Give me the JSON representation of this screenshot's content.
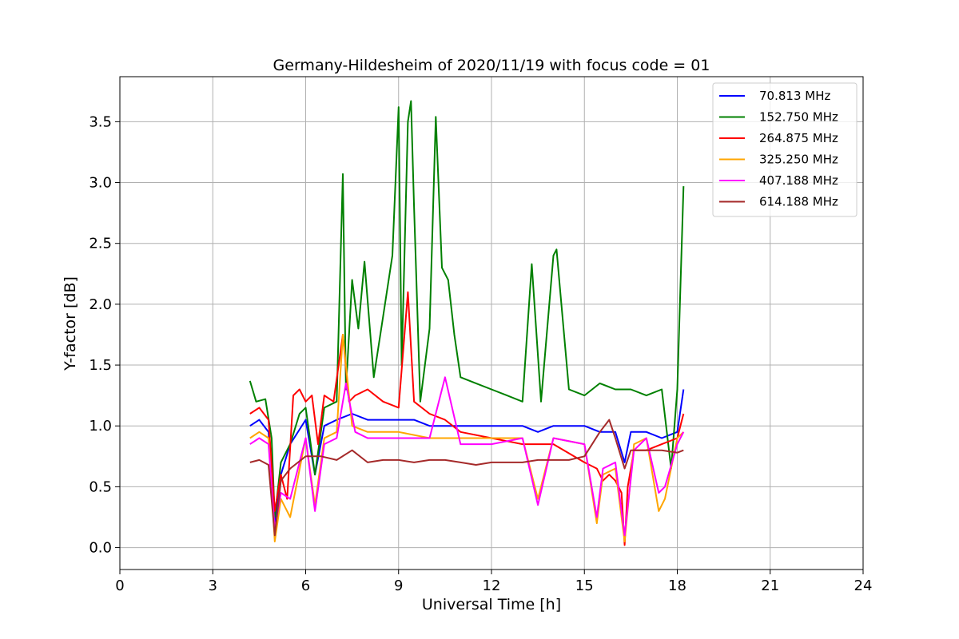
{
  "chart_data": {
    "type": "line",
    "title": "Germany-Hildesheim of 2020/11/19 with focus code = 01",
    "xlabel": "Universal Time [h]",
    "ylabel": "Y-factor [dB]",
    "xlim": [
      0,
      24
    ],
    "ylim": [
      -0.18,
      3.87
    ],
    "xticks": [
      0,
      3,
      6,
      9,
      12,
      15,
      18,
      21,
      24
    ],
    "xtick_labels": [
      "0",
      "3",
      "6",
      "9",
      "12",
      "15",
      "18",
      "21",
      "24"
    ],
    "yticks": [
      0.0,
      0.5,
      1.0,
      1.5,
      2.0,
      2.5,
      3.0,
      3.5
    ],
    "ytick_labels": [
      "0.0",
      "0.5",
      "1.0",
      "1.5",
      "2.0",
      "2.5",
      "3.0",
      "3.5"
    ],
    "grid": true,
    "legend_position": "top-right",
    "series": [
      {
        "name": " 70.813 MHz",
        "color": "#0000ff",
        "x": [
          4.2,
          4.5,
          4.8,
          5.0,
          5.2,
          5.5,
          6.0,
          6.3,
          6.6,
          7.0,
          7.5,
          8.0,
          8.5,
          9.0,
          9.5,
          10.0,
          10.5,
          11.0,
          11.5,
          12.0,
          12.5,
          13.0,
          13.5,
          14.0,
          14.5,
          15.0,
          15.5,
          16.0,
          16.3,
          16.5,
          17.0,
          17.5,
          18.0,
          18.2
        ],
        "y": [
          1.0,
          1.05,
          0.95,
          0.2,
          0.6,
          0.85,
          1.05,
          0.6,
          1.0,
          1.05,
          1.1,
          1.05,
          1.05,
          1.05,
          1.05,
          1.0,
          1.0,
          1.0,
          1.0,
          1.0,
          1.0,
          1.0,
          0.95,
          1.0,
          1.0,
          1.0,
          0.95,
          0.95,
          0.7,
          0.95,
          0.95,
          0.9,
          0.95,
          1.3
        ]
      },
      {
        "name": "152.750 MHz",
        "color": "#008000",
        "x": [
          4.2,
          4.4,
          4.7,
          4.9,
          5.0,
          5.2,
          5.5,
          5.8,
          6.0,
          6.3,
          6.6,
          7.0,
          7.2,
          7.3,
          7.5,
          7.7,
          7.9,
          8.2,
          8.5,
          8.8,
          9.0,
          9.1,
          9.3,
          9.4,
          9.5,
          9.7,
          10.0,
          10.2,
          10.4,
          10.6,
          10.8,
          11.0,
          11.5,
          12.0,
          12.5,
          13.0,
          13.3,
          13.6,
          14.0,
          14.1,
          14.5,
          15.0,
          15.5,
          16.0,
          16.5,
          17.0,
          17.5,
          17.8,
          18.0,
          18.2
        ],
        "y": [
          1.37,
          1.2,
          1.22,
          0.9,
          0.25,
          0.7,
          0.85,
          1.1,
          1.15,
          0.6,
          1.15,
          1.2,
          3.07,
          1.3,
          2.2,
          1.8,
          2.35,
          1.4,
          1.9,
          2.4,
          3.62,
          1.5,
          3.5,
          3.67,
          2.8,
          1.2,
          1.8,
          3.54,
          2.3,
          2.2,
          1.75,
          1.4,
          1.35,
          1.3,
          1.25,
          1.2,
          2.33,
          1.2,
          2.4,
          2.45,
          1.3,
          1.25,
          1.35,
          1.3,
          1.3,
          1.25,
          1.3,
          0.65,
          1.3,
          2.97
        ]
      },
      {
        "name": "264.875 MHz",
        "color": "#ff0000",
        "x": [
          4.2,
          4.5,
          4.8,
          4.95,
          5.0,
          5.2,
          5.4,
          5.6,
          5.8,
          6.0,
          6.2,
          6.4,
          6.6,
          6.9,
          7.2,
          7.4,
          7.6,
          8.0,
          8.5,
          9.0,
          9.3,
          9.5,
          10.0,
          10.5,
          11.0,
          12.0,
          13.0,
          14.0,
          15.0,
          15.4,
          15.6,
          15.8,
          16.0,
          16.2,
          16.3,
          16.4,
          16.6,
          17.0,
          17.5,
          18.0,
          18.2
        ],
        "y": [
          1.1,
          1.15,
          1.05,
          0.5,
          0.3,
          0.6,
          0.4,
          1.25,
          1.3,
          1.2,
          1.25,
          0.85,
          1.25,
          1.2,
          1.75,
          1.2,
          1.25,
          1.3,
          1.2,
          1.15,
          2.1,
          1.2,
          1.1,
          1.05,
          0.95,
          0.9,
          0.85,
          0.85,
          0.7,
          0.65,
          0.55,
          0.6,
          0.55,
          0.45,
          0.02,
          0.5,
          0.8,
          0.8,
          0.85,
          0.9,
          1.1
        ]
      },
      {
        "name": "325.250 MHz",
        "color": "#ffa500",
        "x": [
          4.2,
          4.5,
          4.8,
          5.0,
          5.2,
          5.5,
          6.0,
          6.3,
          6.6,
          7.0,
          7.2,
          7.5,
          8.0,
          9.0,
          10.0,
          11.0,
          12.0,
          13.0,
          13.5,
          14.0,
          15.0,
          15.4,
          15.6,
          16.0,
          16.3,
          16.6,
          17.0,
          17.4,
          17.6,
          18.0,
          18.2
        ],
        "y": [
          0.9,
          0.95,
          0.9,
          0.05,
          0.4,
          0.25,
          0.9,
          0.35,
          0.9,
          0.95,
          1.75,
          1.0,
          0.95,
          0.95,
          0.9,
          0.9,
          0.9,
          0.9,
          0.4,
          0.9,
          0.85,
          0.2,
          0.6,
          0.65,
          0.05,
          0.85,
          0.9,
          0.3,
          0.4,
          0.9,
          0.95
        ]
      },
      {
        "name": "407.188 MHz",
        "color": "#ff00ff",
        "x": [
          4.2,
          4.5,
          4.8,
          5.0,
          5.2,
          5.5,
          6.0,
          6.3,
          6.6,
          7.0,
          7.3,
          7.6,
          8.0,
          9.0,
          10.0,
          10.5,
          11.0,
          12.0,
          13.0,
          13.5,
          14.0,
          15.0,
          15.4,
          15.6,
          16.0,
          16.3,
          16.6,
          17.0,
          17.4,
          17.6,
          18.0,
          18.2
        ],
        "y": [
          0.85,
          0.9,
          0.85,
          0.15,
          0.45,
          0.4,
          0.9,
          0.3,
          0.85,
          0.9,
          1.35,
          0.95,
          0.9,
          0.9,
          0.9,
          1.4,
          0.85,
          0.85,
          0.9,
          0.35,
          0.9,
          0.85,
          0.25,
          0.65,
          0.7,
          0.1,
          0.8,
          0.9,
          0.45,
          0.5,
          0.85,
          0.95
        ]
      },
      {
        "name": "614.188 MHz",
        "color": "#a52a2a",
        "x": [
          4.2,
          4.5,
          4.8,
          5.0,
          5.2,
          5.5,
          6.0,
          6.5,
          7.0,
          7.5,
          8.0,
          8.5,
          9.0,
          9.5,
          10.0,
          10.5,
          11.0,
          11.5,
          12.0,
          12.5,
          13.0,
          13.5,
          14.0,
          14.5,
          15.0,
          15.5,
          15.8,
          16.0,
          16.3,
          16.5,
          17.0,
          17.5,
          18.0,
          18.2
        ],
        "y": [
          0.7,
          0.72,
          0.68,
          0.1,
          0.55,
          0.65,
          0.75,
          0.75,
          0.72,
          0.8,
          0.7,
          0.72,
          0.72,
          0.7,
          0.72,
          0.72,
          0.7,
          0.68,
          0.7,
          0.7,
          0.7,
          0.72,
          0.72,
          0.72,
          0.75,
          0.95,
          1.05,
          0.9,
          0.65,
          0.8,
          0.8,
          0.8,
          0.78,
          0.8
        ]
      }
    ]
  }
}
